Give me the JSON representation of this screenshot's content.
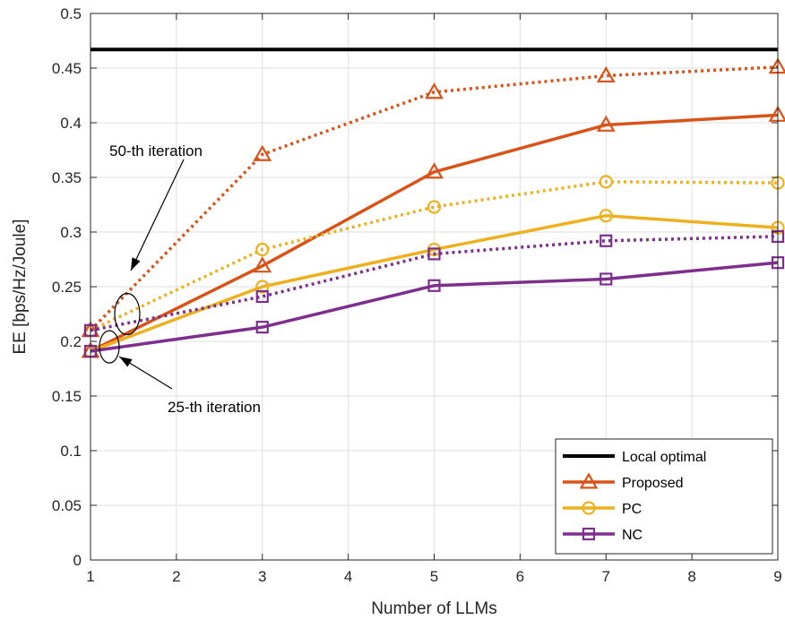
{
  "chart_data": {
    "type": "line",
    "title": "",
    "xlabel": "Number of LLMs",
    "ylabel": "EE [bps/Hz/Joule]",
    "xlim": [
      1,
      9
    ],
    "ylim": [
      0,
      0.5
    ],
    "xticks": [
      1,
      2,
      3,
      4,
      5,
      6,
      7,
      8,
      9
    ],
    "yticks": [
      0,
      0.05,
      0.1,
      0.15,
      0.2,
      0.25,
      0.3,
      0.35,
      0.4,
      0.45,
      0.5
    ],
    "xtick_labels": [
      "1",
      "2",
      "3",
      "4",
      "5",
      "6",
      "7",
      "8",
      "9"
    ],
    "ytick_labels": [
      "0",
      "0.05",
      "0.1",
      "0.15",
      "0.2",
      "0.25",
      "0.3",
      "0.35",
      "0.4",
      "0.45",
      "0.5"
    ],
    "grid": true,
    "legend_position": "bottom-right",
    "x": [
      1,
      3,
      5,
      7,
      9
    ],
    "series": [
      {
        "name": "Local optimal",
        "color": "#000000",
        "marker": "none",
        "dash": "solid",
        "values": [
          0.467,
          0.467,
          0.467,
          0.467,
          0.467
        ]
      },
      {
        "name": "Proposed",
        "color": "#D95319",
        "marker": "triangle",
        "dash": "solid",
        "values": [
          0.191,
          0.269,
          0.355,
          0.398,
          0.407
        ]
      },
      {
        "name": "PC",
        "color": "#EDB120",
        "marker": "circle",
        "dash": "solid",
        "values": [
          0.191,
          0.25,
          0.284,
          0.315,
          0.304
        ]
      },
      {
        "name": "NC",
        "color": "#7E2F8E",
        "marker": "square",
        "dash": "solid",
        "values": [
          0.191,
          0.213,
          0.251,
          0.257,
          0.272
        ]
      },
      {
        "name": "",
        "color": "#D95319",
        "marker": "triangle",
        "dash": "dotted",
        "values": [
          0.21,
          0.371,
          0.428,
          0.443,
          0.451
        ]
      },
      {
        "name": "",
        "color": "#EDB120",
        "marker": "circle",
        "dash": "dotted",
        "values": [
          0.21,
          0.284,
          0.323,
          0.346,
          0.345
        ]
      },
      {
        "name": "",
        "color": "#7E2F8E",
        "marker": "square",
        "dash": "dotted",
        "values": [
          0.21,
          0.241,
          0.28,
          0.292,
          0.296
        ]
      }
    ],
    "legend": [
      "Local optimal",
      "Proposed",
      "PC",
      "NC"
    ],
    "annotations": [
      {
        "text": "50-th iteration",
        "points_to_y": 0.23
      },
      {
        "text": "25-th iteration",
        "points_to_y": 0.195
      }
    ]
  }
}
